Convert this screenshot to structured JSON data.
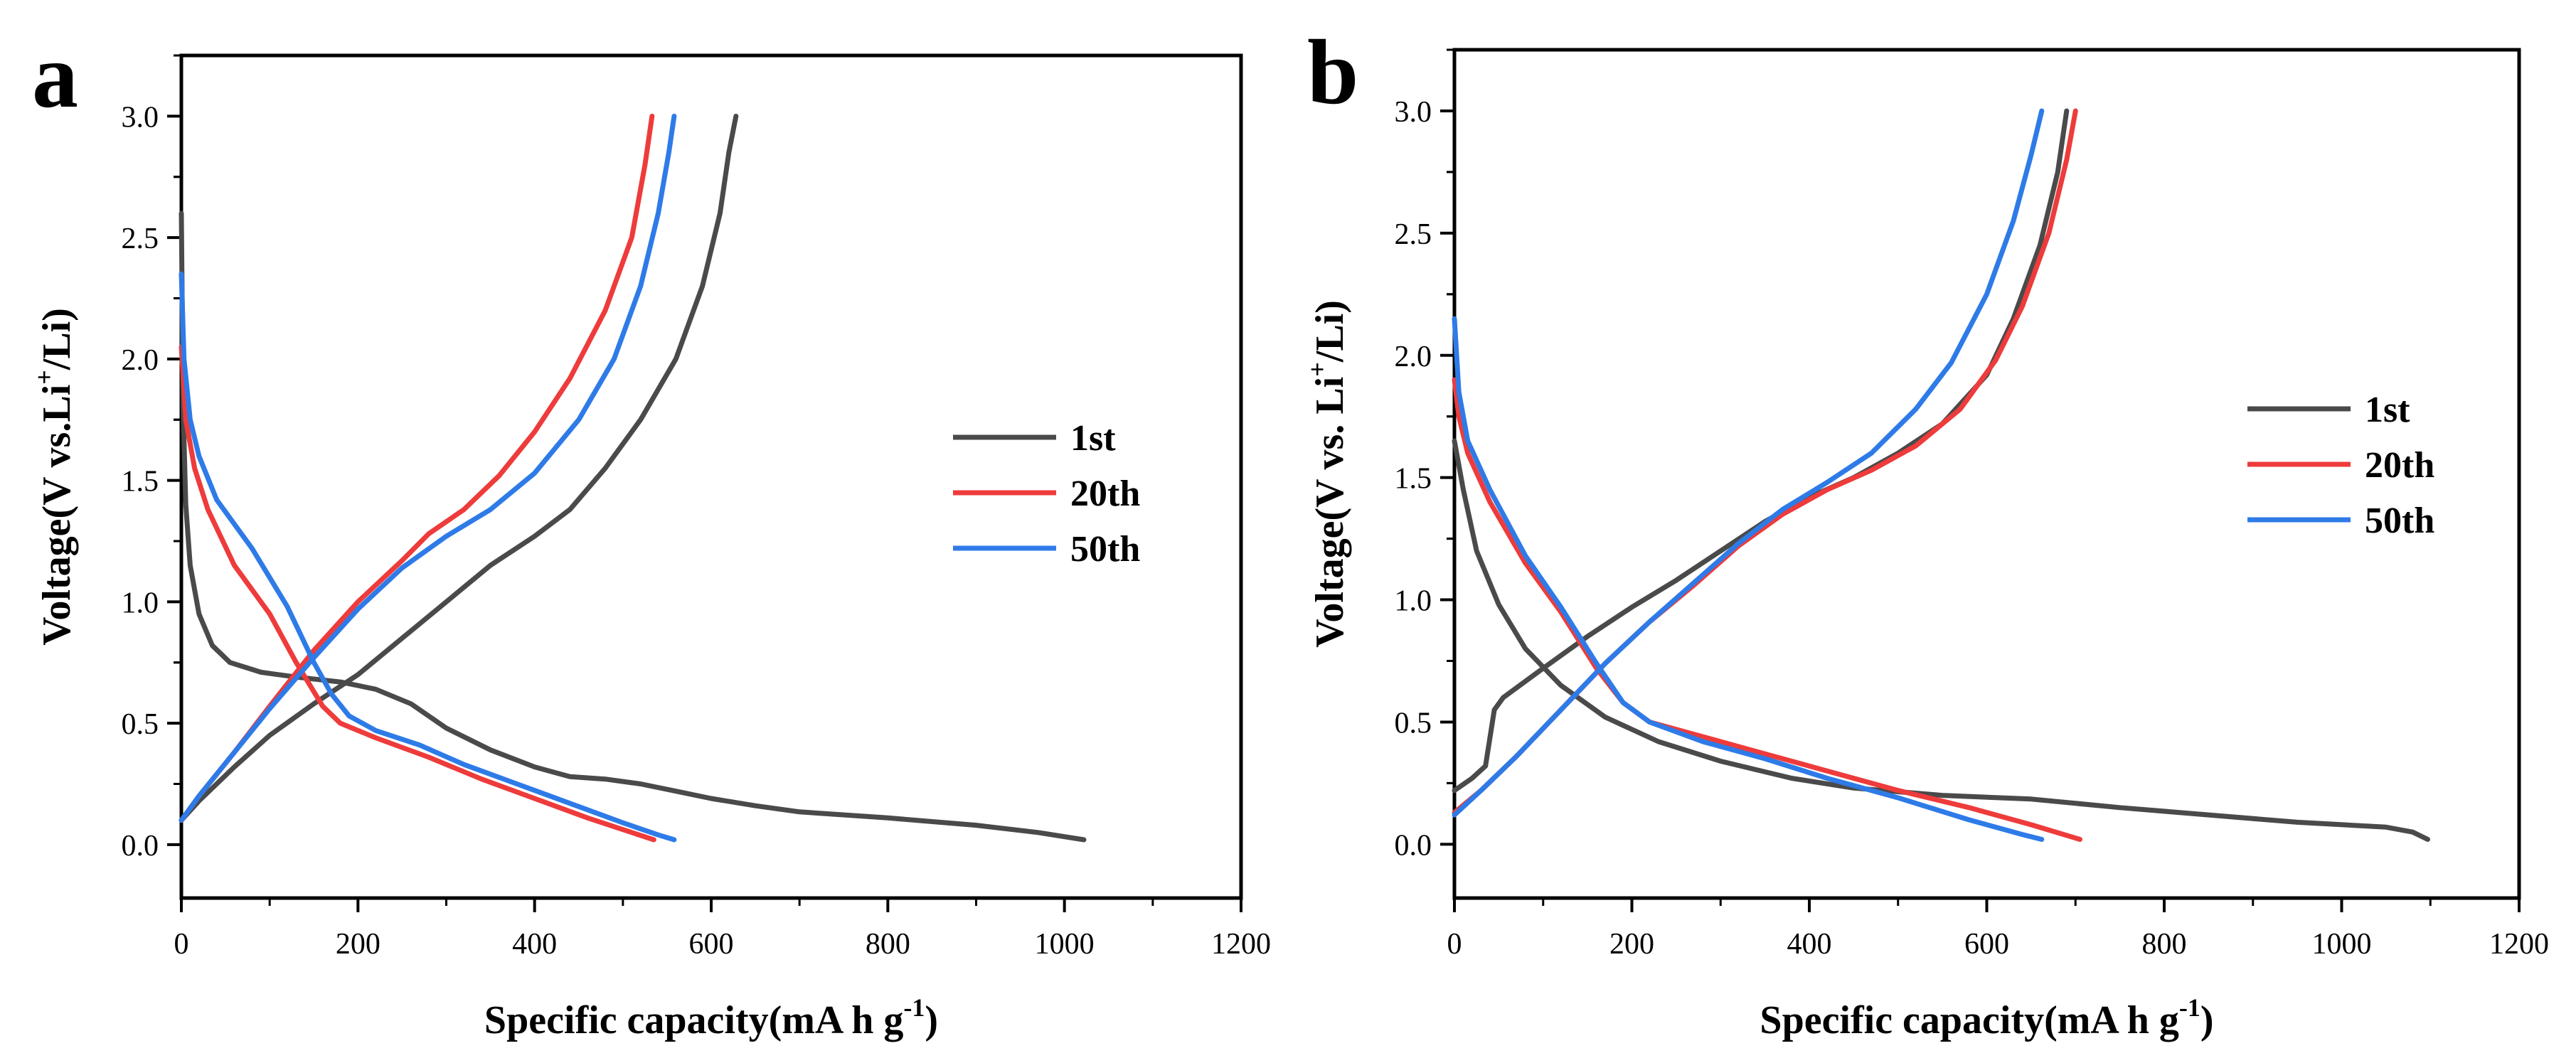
{
  "chart_data": [
    {
      "type": "line",
      "panel_label": "a",
      "xlabel": "Specific capacity(mA h g",
      "xlabel_sup": "-1",
      "xlabel_end": ")",
      "ylabel_pre": "Voltage(V vs.Li",
      "ylabel_sup": "+",
      "ylabel_post": "/Li)",
      "xlim": [
        0,
        1200
      ],
      "ylim": [
        -0.22,
        3.25
      ],
      "xticks": [
        0,
        200,
        400,
        600,
        800,
        1000,
        1200
      ],
      "yticks": [
        0.0,
        0.5,
        1.0,
        1.5,
        2.0,
        2.5,
        3.0
      ],
      "xtick_labels": [
        "0",
        "200",
        "400",
        "600",
        "800",
        "1000",
        "1200"
      ],
      "ytick_labels": [
        "0.0",
        "0.5",
        "1.0",
        "1.5",
        "2.0",
        "2.5",
        "3.0"
      ],
      "legend_position": "center-right",
      "series": [
        {
          "name": "1st",
          "color": "#4a4a4a",
          "discharge": [
            [
              0,
              2.6
            ],
            [
              2,
              1.8
            ],
            [
              5,
              1.4
            ],
            [
              10,
              1.15
            ],
            [
              20,
              0.95
            ],
            [
              35,
              0.82
            ],
            [
              55,
              0.75
            ],
            [
              90,
              0.71
            ],
            [
              130,
              0.69
            ],
            [
              180,
              0.67
            ],
            [
              220,
              0.64
            ],
            [
              260,
              0.58
            ],
            [
              300,
              0.48
            ],
            [
              350,
              0.39
            ],
            [
              400,
              0.32
            ],
            [
              440,
              0.28
            ],
            [
              480,
              0.27
            ],
            [
              520,
              0.25
            ],
            [
              560,
              0.22
            ],
            [
              600,
              0.19
            ],
            [
              650,
              0.16
            ],
            [
              700,
              0.135
            ],
            [
              800,
              0.11
            ],
            [
              900,
              0.08
            ],
            [
              970,
              0.05
            ],
            [
              1022,
              0.02
            ]
          ],
          "charge": [
            [
              0,
              0.1
            ],
            [
              20,
              0.18
            ],
            [
              60,
              0.32
            ],
            [
              100,
              0.45
            ],
            [
              150,
              0.58
            ],
            [
              200,
              0.7
            ],
            [
              250,
              0.85
            ],
            [
              300,
              1.0
            ],
            [
              350,
              1.15
            ],
            [
              400,
              1.27
            ],
            [
              440,
              1.38
            ],
            [
              480,
              1.55
            ],
            [
              520,
              1.75
            ],
            [
              560,
              2.0
            ],
            [
              590,
              2.3
            ],
            [
              610,
              2.6
            ],
            [
              620,
              2.85
            ],
            [
              628,
              3.0
            ]
          ]
        },
        {
          "name": "20th",
          "color": "#ee3b3b",
          "discharge": [
            [
              0,
              2.05
            ],
            [
              5,
              1.75
            ],
            [
              15,
              1.55
            ],
            [
              30,
              1.38
            ],
            [
              60,
              1.15
            ],
            [
              100,
              0.95
            ],
            [
              130,
              0.75
            ],
            [
              160,
              0.57
            ],
            [
              180,
              0.5
            ],
            [
              220,
              0.44
            ],
            [
              280,
              0.36
            ],
            [
              340,
              0.27
            ],
            [
              400,
              0.19
            ],
            [
              460,
              0.11
            ],
            [
              510,
              0.05
            ],
            [
              535,
              0.02
            ]
          ],
          "charge": [
            [
              0,
              0.1
            ],
            [
              20,
              0.2
            ],
            [
              60,
              0.38
            ],
            [
              100,
              0.57
            ],
            [
              150,
              0.8
            ],
            [
              200,
              1.0
            ],
            [
              250,
              1.17
            ],
            [
              280,
              1.28
            ],
            [
              320,
              1.38
            ],
            [
              360,
              1.52
            ],
            [
              400,
              1.7
            ],
            [
              440,
              1.92
            ],
            [
              480,
              2.2
            ],
            [
              510,
              2.5
            ],
            [
              525,
              2.8
            ],
            [
              533,
              3.0
            ]
          ]
        },
        {
          "name": "50th",
          "color": "#2e7be8",
          "discharge": [
            [
              0,
              2.35
            ],
            [
              3,
              2.0
            ],
            [
              10,
              1.75
            ],
            [
              20,
              1.6
            ],
            [
              40,
              1.42
            ],
            [
              80,
              1.22
            ],
            [
              120,
              0.98
            ],
            [
              150,
              0.75
            ],
            [
              170,
              0.62
            ],
            [
              190,
              0.53
            ],
            [
              220,
              0.47
            ],
            [
              270,
              0.41
            ],
            [
              320,
              0.33
            ],
            [
              380,
              0.25
            ],
            [
              440,
              0.17
            ],
            [
              500,
              0.09
            ],
            [
              540,
              0.04
            ],
            [
              558,
              0.02
            ]
          ],
          "charge": [
            [
              0,
              0.1
            ],
            [
              20,
              0.2
            ],
            [
              60,
              0.38
            ],
            [
              100,
              0.56
            ],
            [
              150,
              0.77
            ],
            [
              200,
              0.97
            ],
            [
              250,
              1.14
            ],
            [
              300,
              1.27
            ],
            [
              350,
              1.38
            ],
            [
              400,
              1.53
            ],
            [
              450,
              1.75
            ],
            [
              490,
              2.0
            ],
            [
              520,
              2.3
            ],
            [
              540,
              2.6
            ],
            [
              552,
              2.85
            ],
            [
              558,
              3.0
            ]
          ]
        }
      ]
    },
    {
      "type": "line",
      "panel_label": "b",
      "xlabel": "Specific capacity(mA h g",
      "xlabel_sup": "-1",
      "xlabel_end": ")",
      "ylabel_pre": "Voltage(V vs. Li",
      "ylabel_sup": "+",
      "ylabel_post": "/Li)",
      "xlim": [
        0,
        1200
      ],
      "ylim": [
        -0.22,
        3.25
      ],
      "xticks": [
        0,
        200,
        400,
        600,
        800,
        1000,
        1200
      ],
      "yticks": [
        0.0,
        0.5,
        1.0,
        1.5,
        2.0,
        2.5,
        3.0
      ],
      "xtick_labels": [
        "0",
        "200",
        "400",
        "600",
        "800",
        "1000",
        "1200"
      ],
      "ytick_labels": [
        "0.0",
        "0.5",
        "1.0",
        "1.5",
        "2.0",
        "2.5",
        "3.0"
      ],
      "legend_position": "center-right",
      "series": [
        {
          "name": "1st",
          "color": "#4a4a4a",
          "discharge": [
            [
              0,
              1.65
            ],
            [
              10,
              1.45
            ],
            [
              25,
              1.2
            ],
            [
              50,
              0.98
            ],
            [
              80,
              0.8
            ],
            [
              120,
              0.65
            ],
            [
              170,
              0.52
            ],
            [
              230,
              0.42
            ],
            [
              300,
              0.34
            ],
            [
              380,
              0.27
            ],
            [
              450,
              0.23
            ],
            [
              550,
              0.2
            ],
            [
              650,
              0.185
            ],
            [
              750,
              0.15
            ],
            [
              850,
              0.12
            ],
            [
              950,
              0.09
            ],
            [
              1050,
              0.07
            ],
            [
              1080,
              0.05
            ],
            [
              1097,
              0.02
            ]
          ],
          "charge": [
            [
              0,
              0.22
            ],
            [
              20,
              0.27
            ],
            [
              35,
              0.32
            ],
            [
              45,
              0.55
            ],
            [
              55,
              0.6
            ],
            [
              100,
              0.72
            ],
            [
              150,
              0.85
            ],
            [
              200,
              0.97
            ],
            [
              250,
              1.08
            ],
            [
              300,
              1.2
            ],
            [
              350,
              1.32
            ],
            [
              400,
              1.42
            ],
            [
              450,
              1.5
            ],
            [
              500,
              1.6
            ],
            [
              550,
              1.72
            ],
            [
              600,
              1.92
            ],
            [
              630,
              2.15
            ],
            [
              660,
              2.45
            ],
            [
              680,
              2.75
            ],
            [
              690,
              3.0
            ]
          ]
        },
        {
          "name": "20th",
          "color": "#ee3b3b",
          "discharge": [
            [
              0,
              1.9
            ],
            [
              5,
              1.75
            ],
            [
              15,
              1.6
            ],
            [
              40,
              1.4
            ],
            [
              80,
              1.15
            ],
            [
              120,
              0.95
            ],
            [
              160,
              0.72
            ],
            [
              190,
              0.58
            ],
            [
              220,
              0.5
            ],
            [
              280,
              0.44
            ],
            [
              350,
              0.37
            ],
            [
              420,
              0.3
            ],
            [
              500,
              0.22
            ],
            [
              580,
              0.15
            ],
            [
              650,
              0.08
            ],
            [
              705,
              0.02
            ]
          ],
          "charge": [
            [
              0,
              0.13
            ],
            [
              30,
              0.22
            ],
            [
              70,
              0.36
            ],
            [
              120,
              0.55
            ],
            [
              170,
              0.74
            ],
            [
              220,
              0.91
            ],
            [
              270,
              1.06
            ],
            [
              320,
              1.22
            ],
            [
              370,
              1.35
            ],
            [
              420,
              1.45
            ],
            [
              470,
              1.53
            ],
            [
              520,
              1.63
            ],
            [
              570,
              1.78
            ],
            [
              610,
              1.98
            ],
            [
              640,
              2.2
            ],
            [
              670,
              2.5
            ],
            [
              690,
              2.8
            ],
            [
              700,
              3.0
            ]
          ]
        },
        {
          "name": "50th",
          "color": "#2e7be8",
          "discharge": [
            [
              0,
              2.15
            ],
            [
              5,
              1.85
            ],
            [
              15,
              1.65
            ],
            [
              40,
              1.45
            ],
            [
              80,
              1.18
            ],
            [
              120,
              0.97
            ],
            [
              160,
              0.74
            ],
            [
              190,
              0.58
            ],
            [
              220,
              0.5
            ],
            [
              280,
              0.42
            ],
            [
              350,
              0.35
            ],
            [
              420,
              0.27
            ],
            [
              500,
              0.19
            ],
            [
              580,
              0.1
            ],
            [
              640,
              0.04
            ],
            [
              662,
              0.02
            ]
          ],
          "charge": [
            [
              0,
              0.12
            ],
            [
              30,
              0.22
            ],
            [
              70,
              0.36
            ],
            [
              120,
              0.55
            ],
            [
              170,
              0.74
            ],
            [
              220,
              0.91
            ],
            [
              270,
              1.07
            ],
            [
              320,
              1.23
            ],
            [
              370,
              1.37
            ],
            [
              420,
              1.48
            ],
            [
              470,
              1.6
            ],
            [
              520,
              1.78
            ],
            [
              560,
              1.97
            ],
            [
              600,
              2.25
            ],
            [
              630,
              2.55
            ],
            [
              650,
              2.82
            ],
            [
              662,
              3.0
            ]
          ]
        }
      ]
    }
  ]
}
